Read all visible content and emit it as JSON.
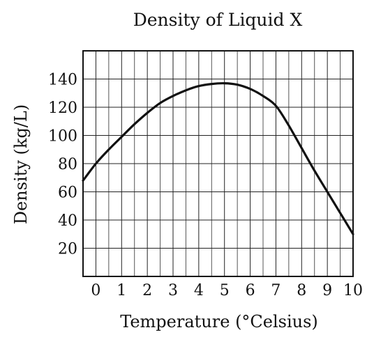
{
  "chart_data": {
    "type": "line",
    "title": "Density of Liquid X",
    "xlabel": "Temperature (°Celsius)",
    "ylabel": "Density (kg/L)",
    "x_ticks": [
      0,
      1,
      2,
      3,
      4,
      5,
      6,
      7,
      8,
      9,
      10
    ],
    "y_ticks": [
      20,
      40,
      60,
      80,
      100,
      120,
      140
    ],
    "xlim": [
      -0.5,
      10
    ],
    "ylim": [
      0,
      160
    ],
    "grid": true,
    "series": [
      {
        "x": [
          -0.5,
          0,
          0.5,
          1,
          1.5,
          2,
          2.5,
          3,
          3.5,
          4,
          4.5,
          5,
          5.5,
          6,
          6.5,
          7,
          7.5,
          8,
          8.5,
          9,
          9.5,
          10
        ],
        "values": [
          68,
          80,
          90,
          99,
          108,
          116,
          123,
          128,
          132,
          135,
          136.5,
          137,
          136,
          133,
          128,
          121,
          107,
          91,
          75,
          60,
          45,
          30
        ]
      }
    ]
  }
}
